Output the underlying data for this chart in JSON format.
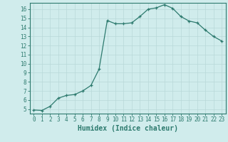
{
  "x": [
    0,
    1,
    2,
    3,
    4,
    5,
    6,
    7,
    8,
    9,
    10,
    11,
    12,
    13,
    14,
    15,
    16,
    17,
    18,
    19,
    20,
    21,
    22,
    23
  ],
  "y": [
    4.9,
    4.85,
    5.3,
    6.2,
    6.5,
    6.6,
    7.0,
    7.6,
    9.4,
    14.75,
    14.4,
    14.4,
    14.5,
    15.2,
    16.0,
    16.15,
    16.5,
    16.1,
    15.2,
    14.7,
    14.5,
    13.7,
    13.0,
    12.5
  ],
  "line_color": "#2d7a6e",
  "marker": "+",
  "bg_color": "#d0ecec",
  "grid_color": "#b8d8d8",
  "xlabel": "Humidex (Indice chaleur)",
  "xlim": [
    -0.5,
    23.5
  ],
  "ylim": [
    4.5,
    16.7
  ],
  "yticks": [
    5,
    6,
    7,
    8,
    9,
    10,
    11,
    12,
    13,
    14,
    15,
    16
  ],
  "xticks": [
    0,
    1,
    2,
    3,
    4,
    5,
    6,
    7,
    8,
    9,
    10,
    11,
    12,
    13,
    14,
    15,
    16,
    17,
    18,
    19,
    20,
    21,
    22,
    23
  ],
  "tick_label_fontsize": 5.5,
  "xlabel_fontsize": 7,
  "axis_color": "#2d7a6e",
  "spine_color": "#2d7a6e"
}
